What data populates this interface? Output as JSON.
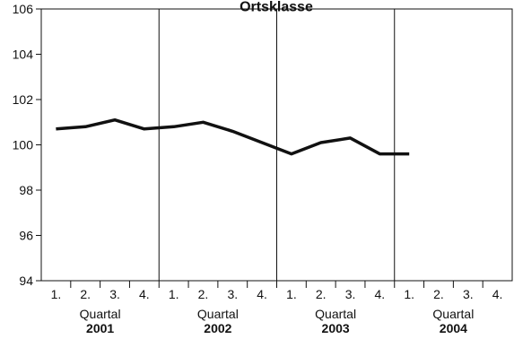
{
  "chart_data": {
    "type": "line",
    "title": "Ortsklasse",
    "ylim": [
      94,
      106
    ],
    "y_ticks": [
      "94",
      "96",
      "98",
      "100",
      "102",
      "104",
      "106"
    ],
    "grid": "vertical lines at year boundaries",
    "groups": [
      {
        "year": "2001",
        "label": "Quartal",
        "quarters": [
          "1.",
          "2.",
          "3.",
          "4."
        ]
      },
      {
        "year": "2002",
        "label": "Quartal",
        "quarters": [
          "1.",
          "2.",
          "3.",
          "4."
        ]
      },
      {
        "year": "2003",
        "label": "Quartal",
        "quarters": [
          "1.",
          "2.",
          "3.",
          "4."
        ]
      },
      {
        "year": "2004",
        "label": "Quartal",
        "quarters": [
          "1.",
          "2.",
          "3.",
          "4."
        ]
      }
    ],
    "series": [
      {
        "values": [
          100.7,
          100.8,
          101.1,
          100.7,
          100.8,
          101.0,
          100.6,
          100.1,
          99.6,
          100.1,
          100.3,
          99.6,
          99.6,
          null,
          null,
          null
        ]
      }
    ],
    "colors": {
      "line": "#111111",
      "axis": "#111111",
      "background": "#ffffff"
    }
  }
}
